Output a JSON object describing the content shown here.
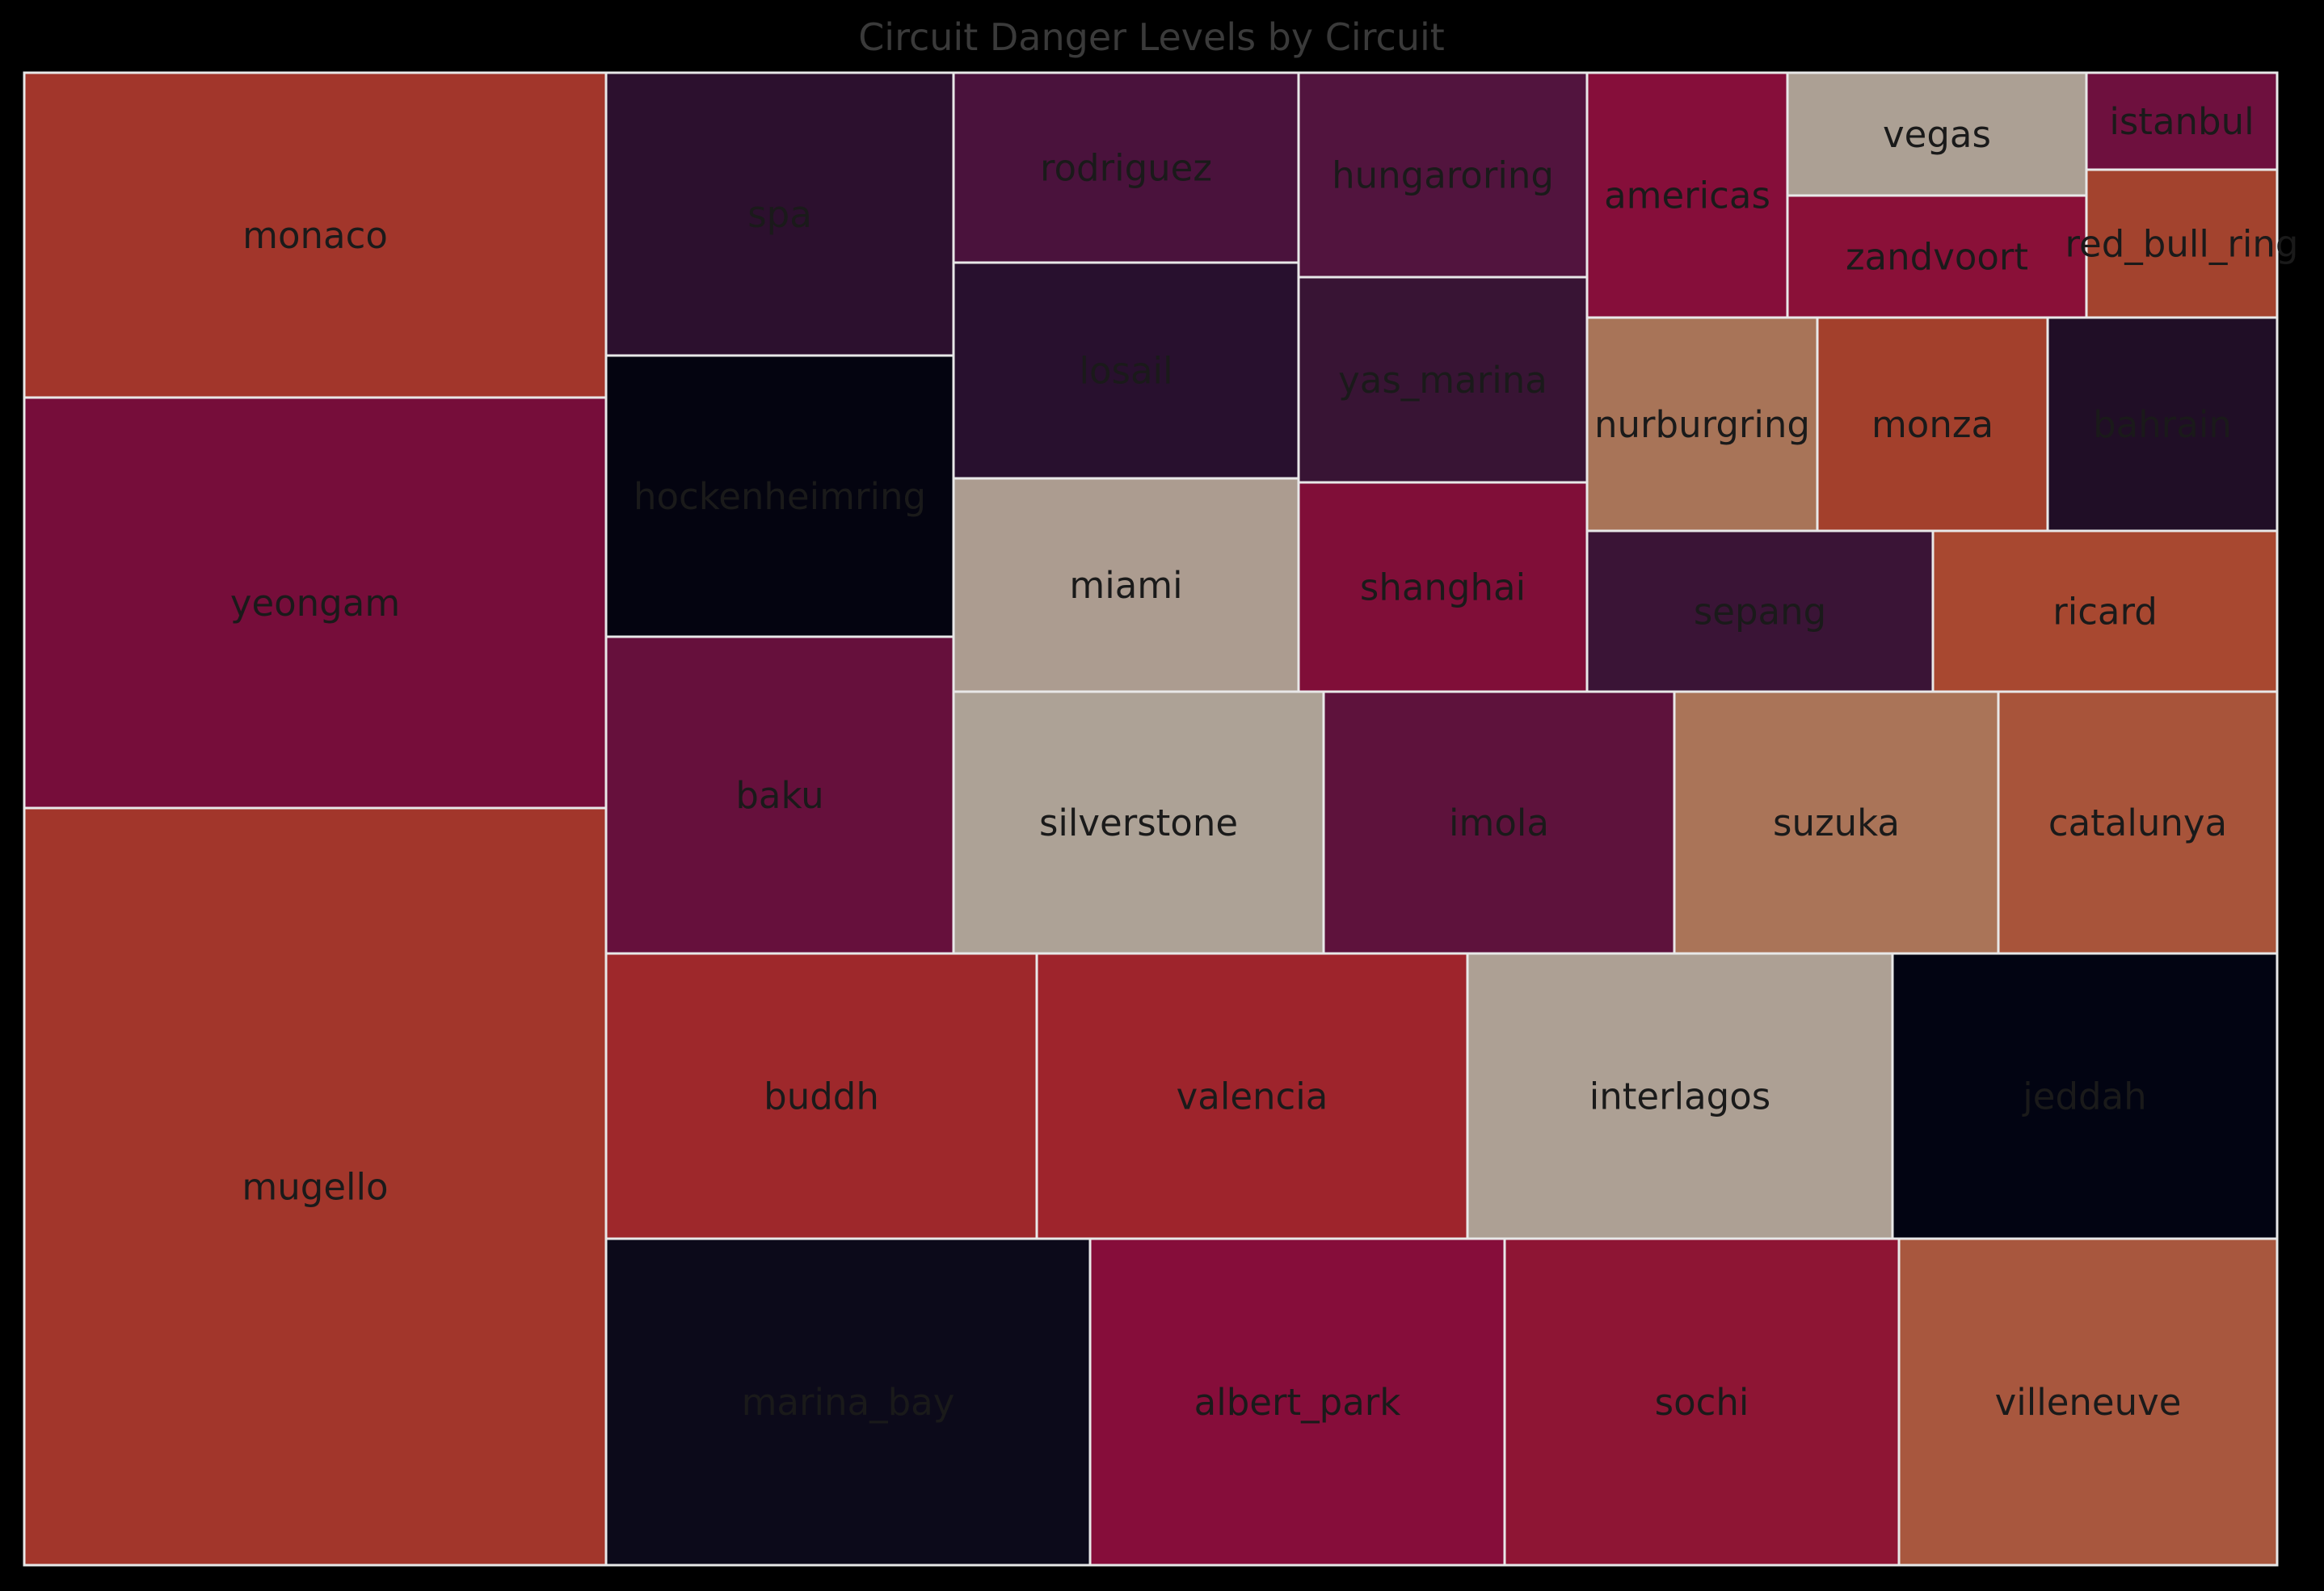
{
  "chart_data": {
    "type": "treemap",
    "title": "Circuit Danger Levels by Circuit",
    "colors": {
      "background": "#000000",
      "tile_border": "#e8e8e8",
      "label": "#1a1a1a",
      "title": "#3a3a3a"
    },
    "tiles": [
      {
        "name": "monaco",
        "color": "#a2362b"
      },
      {
        "name": "yeongam",
        "color": "#760d3a"
      },
      {
        "name": "mugello",
        "color": "#a2362b"
      },
      {
        "name": "spa",
        "color": "#2c102e"
      },
      {
        "name": "hockenheimring",
        "color": "#040410"
      },
      {
        "name": "baku",
        "color": "#66103c"
      },
      {
        "name": "rodriguez",
        "color": "#4a123c"
      },
      {
        "name": "losail",
        "color": "#28102e"
      },
      {
        "name": "miami",
        "color": "#ac9c90"
      },
      {
        "name": "hungaroring",
        "color": "#52143e"
      },
      {
        "name": "yas_marina",
        "color": "#381434"
      },
      {
        "name": "shanghai",
        "color": "#800e38"
      },
      {
        "name": "americas",
        "color": "#860e3a"
      },
      {
        "name": "vegas",
        "color": "#aca094"
      },
      {
        "name": "zandvoort",
        "color": "#8a1038"
      },
      {
        "name": "istanbul",
        "color": "#6e103e"
      },
      {
        "name": "red_bull_ring",
        "color": "#a3432e"
      },
      {
        "name": "nurburgring",
        "color": "#a87458"
      },
      {
        "name": "monza",
        "color": "#a3402c"
      },
      {
        "name": "bahrain",
        "color": "#200e26"
      },
      {
        "name": "sepang",
        "color": "#3a1436"
      },
      {
        "name": "ricard",
        "color": "#a84830"
      },
      {
        "name": "silverstone",
        "color": "#ada296"
      },
      {
        "name": "imola",
        "color": "#5e123c"
      },
      {
        "name": "suzuka",
        "color": "#aa7458"
      },
      {
        "name": "catalunya",
        "color": "#a8543a"
      },
      {
        "name": "buddh",
        "color": "#9e282b"
      },
      {
        "name": "valencia",
        "color": "#9e242c"
      },
      {
        "name": "interlagos",
        "color": "#ada094"
      },
      {
        "name": "jeddah",
        "color": "#020412"
      },
      {
        "name": "marina_bay",
        "color": "#0c0a1a"
      },
      {
        "name": "albert_park",
        "color": "#860d3a"
      },
      {
        "name": "sochi",
        "color": "#8e1534"
      },
      {
        "name": "villeneuve",
        "color": "#a8573e"
      }
    ]
  }
}
